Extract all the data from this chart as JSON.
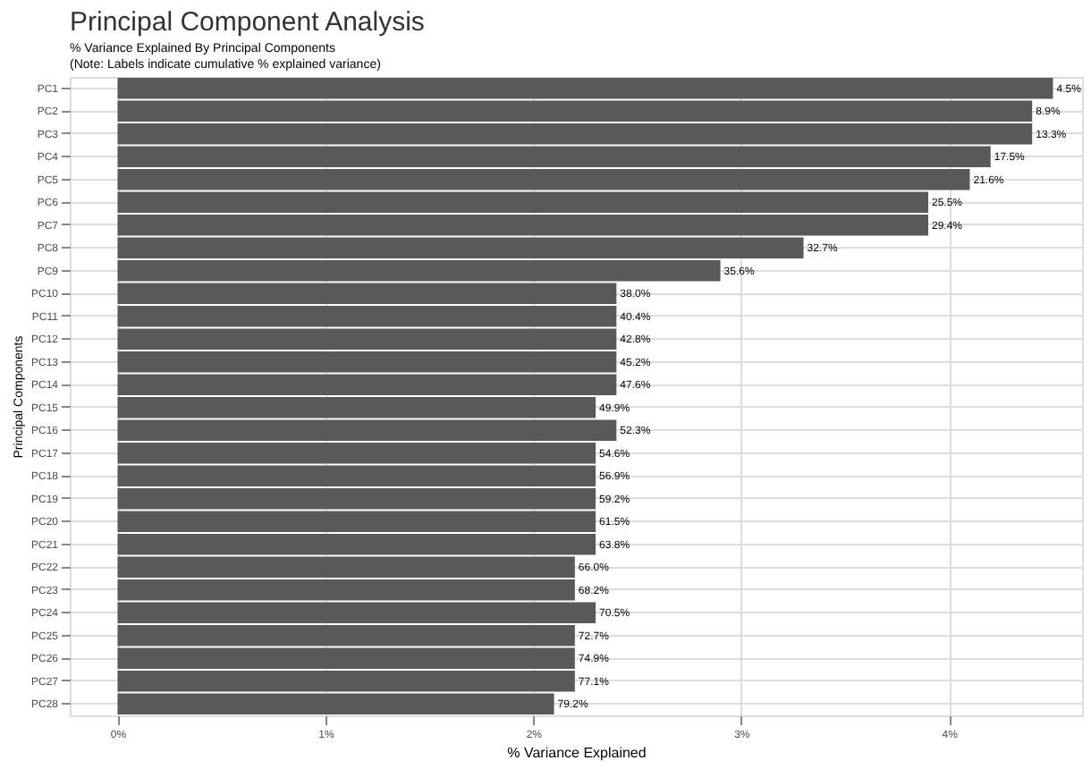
{
  "chart_data": {
    "type": "bar",
    "orientation": "horizontal",
    "title": "Principal Component Analysis",
    "subtitle": "% Variance Explained By Principal Components\n(Note: Labels indicate cumulative % explained variance)",
    "xlabel": "% Variance Explained",
    "ylabel": "Principal Components",
    "categories": [
      "PC1",
      "PC2",
      "PC3",
      "PC4",
      "PC5",
      "PC6",
      "PC7",
      "PC8",
      "PC9",
      "PC10",
      "PC11",
      "PC12",
      "PC13",
      "PC14",
      "PC15",
      "PC16",
      "PC17",
      "PC18",
      "PC19",
      "PC20",
      "PC21",
      "PC22",
      "PC23",
      "PC24",
      "PC25",
      "PC26",
      "PC27",
      "PC28"
    ],
    "values": [
      4.5,
      4.4,
      4.4,
      4.2,
      4.1,
      3.9,
      3.9,
      3.3,
      2.9,
      2.4,
      2.4,
      2.4,
      2.4,
      2.4,
      2.3,
      2.4,
      2.3,
      2.3,
      2.3,
      2.3,
      2.3,
      2.2,
      2.2,
      2.3,
      2.2,
      2.2,
      2.2,
      2.1
    ],
    "annotations": [
      {
        "text": "4.5%",
        "x": 4.5,
        "y": "PC1"
      },
      {
        "text": "8.9%",
        "x": 4.4,
        "y": "PC2"
      },
      {
        "text": "13.3%",
        "x": 4.4,
        "y": "PC3"
      },
      {
        "text": "17.5%",
        "x": 4.2,
        "y": "PC4"
      },
      {
        "text": "21.6%",
        "x": 4.1,
        "y": "PC5"
      },
      {
        "text": "25.5%",
        "x": 3.9,
        "y": "PC6"
      },
      {
        "text": "29.4%",
        "x": 3.9,
        "y": "PC7"
      },
      {
        "text": "32.7%",
        "x": 3.3,
        "y": "PC8"
      },
      {
        "text": "35.6%",
        "x": 2.9,
        "y": "PC9"
      },
      {
        "text": "38.0%",
        "x": 2.4,
        "y": "PC10"
      },
      {
        "text": "40.4%",
        "x": 2.4,
        "y": "PC11"
      },
      {
        "text": "42.8%",
        "x": 2.4,
        "y": "PC12"
      },
      {
        "text": "45.2%",
        "x": 2.4,
        "y": "PC13"
      },
      {
        "text": "47.6%",
        "x": 2.4,
        "y": "PC14"
      },
      {
        "text": "49.9%",
        "x": 2.3,
        "y": "PC15"
      },
      {
        "text": "52.3%",
        "x": 2.4,
        "y": "PC16"
      },
      {
        "text": "54.6%",
        "x": 2.3,
        "y": "PC17"
      },
      {
        "text": "56.9%",
        "x": 2.3,
        "y": "PC18"
      },
      {
        "text": "59.2%",
        "x": 2.3,
        "y": "PC19"
      },
      {
        "text": "61.5%",
        "x": 2.3,
        "y": "PC20"
      },
      {
        "text": "63.8%",
        "x": 2.3,
        "y": "PC21"
      },
      {
        "text": "66.0%",
        "x": 2.2,
        "y": "PC22"
      },
      {
        "text": "68.2%",
        "x": 2.2,
        "y": "PC23"
      },
      {
        "text": "70.5%",
        "x": 2.3,
        "y": "PC24"
      },
      {
        "text": "72.7%",
        "x": 2.2,
        "y": "PC25"
      },
      {
        "text": "74.9%",
        "x": 2.2,
        "y": "PC26"
      },
      {
        "text": "77.1%",
        "x": 2.2,
        "y": "PC27"
      },
      {
        "text": "79.2%",
        "x": 2.1,
        "y": "PC28"
      }
    ],
    "color": "#595959",
    "xlim": [
      -0.23,
      4.64
    ],
    "xticks": [
      {
        "value": 0,
        "label": "0%"
      },
      {
        "value": 1,
        "label": "1%"
      },
      {
        "value": 2,
        "label": "2%"
      },
      {
        "value": 3,
        "label": "3%"
      },
      {
        "value": 4,
        "label": "4%"
      }
    ],
    "grid": true
  }
}
